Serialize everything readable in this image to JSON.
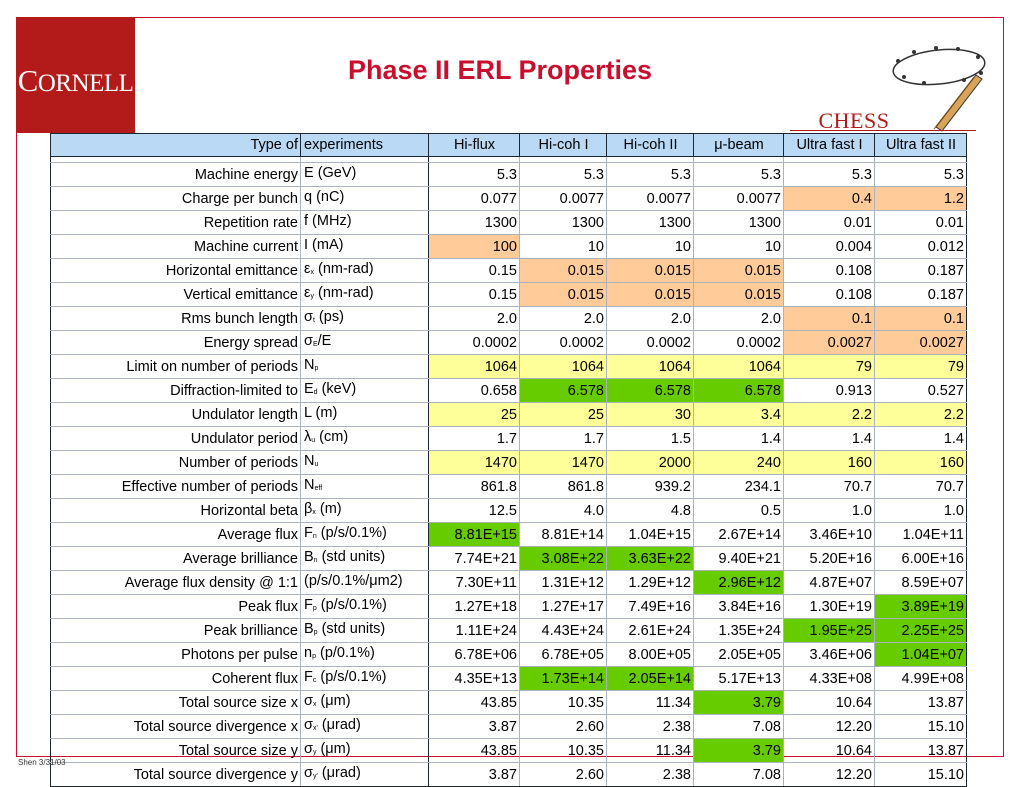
{
  "logo": {
    "text_first": "C",
    "text_rest": "ORNELL"
  },
  "title": "Phase II ERL Properties",
  "chess": {
    "text": "CHESS"
  },
  "footnote": "Shen 3/31/03",
  "colors": {
    "frame": "#c8102e",
    "logo_bg": "#b31b1b",
    "header_bg": "#b9d9f5",
    "orange": "#ffcc99",
    "yellow": "#ffff99",
    "green": "#66cc00"
  },
  "table": {
    "headers": [
      "Type of",
      "experiments",
      "Hi-flux",
      "Hi-coh I",
      "Hi-coh II",
      "μ-beam",
      "Ultra fast I",
      "Ultra fast II"
    ],
    "rows": [
      {
        "label": "Machine energy",
        "sym": "E",
        "sub": "",
        "unit": " (GeV)",
        "values": [
          "5.3",
          "5.3",
          "5.3",
          "5.3",
          "5.3",
          "5.3"
        ],
        "hl": [
          "",
          "",
          "",
          "",
          "",
          ""
        ]
      },
      {
        "label": "Charge per bunch",
        "sym": "q",
        "sub": "",
        "unit": " (nC)",
        "values": [
          "0.077",
          "0.0077",
          "0.0077",
          "0.0077",
          "0.4",
          "1.2"
        ],
        "hl": [
          "",
          "",
          "",
          "",
          "o",
          "o"
        ]
      },
      {
        "label": "Repetition rate",
        "sym": "f",
        "sub": "",
        "unit": " (MHz)",
        "values": [
          "1300",
          "1300",
          "1300",
          "1300",
          "0.01",
          "0.01"
        ],
        "hl": [
          "",
          "",
          "",
          "",
          "",
          ""
        ]
      },
      {
        "label": "Machine current",
        "sym": "I",
        "sub": "",
        "unit": " (mA)",
        "values": [
          "100",
          "10",
          "10",
          "10",
          "0.004",
          "0.012"
        ],
        "hl": [
          "o",
          "",
          "",
          "",
          "",
          ""
        ]
      },
      {
        "label": "Horizontal emittance",
        "sym": "ε",
        "sub": "x",
        "unit": " (nm-rad)",
        "values": [
          "0.15",
          "0.015",
          "0.015",
          "0.015",
          "0.108",
          "0.187"
        ],
        "hl": [
          "",
          "o",
          "o",
          "o",
          "",
          ""
        ]
      },
      {
        "label": "Vertical emittance",
        "sym": "ε",
        "sub": "y",
        "unit": " (nm-rad)",
        "values": [
          "0.15",
          "0.015",
          "0.015",
          "0.015",
          "0.108",
          "0.187"
        ],
        "hl": [
          "",
          "o",
          "o",
          "o",
          "",
          ""
        ]
      },
      {
        "label": "Rms bunch length",
        "sym": "σ",
        "sub": "t",
        "unit": " (ps)",
        "values": [
          "2.0",
          "2.0",
          "2.0",
          "2.0",
          "0.1",
          "0.1"
        ],
        "hl": [
          "",
          "",
          "",
          "",
          "o",
          "o"
        ]
      },
      {
        "label": "Energy spread",
        "sym": "σ",
        "sub": "E",
        "unit": "/E",
        "values": [
          "0.0002",
          "0.0002",
          "0.0002",
          "0.0002",
          "0.0027",
          "0.0027"
        ],
        "hl": [
          "",
          "",
          "",
          "",
          "o",
          "o"
        ]
      },
      {
        "label": "Limit on number of periods",
        "sym": "N",
        "sub": "p",
        "unit": "",
        "values": [
          "1064",
          "1064",
          "1064",
          "1064",
          "79",
          "79"
        ],
        "hl": [
          "y",
          "y",
          "y",
          "y",
          "y",
          "y"
        ]
      },
      {
        "label": "Diffraction-limited to",
        "sym": "E",
        "sub": "d",
        "unit": " (keV)",
        "values": [
          "0.658",
          "6.578",
          "6.578",
          "6.578",
          "0.913",
          "0.527"
        ],
        "hl": [
          "",
          "g",
          "g",
          "g",
          "",
          ""
        ]
      },
      {
        "label": "Undulator length",
        "sym": "L",
        "sub": "",
        "unit": " (m)",
        "values": [
          "25",
          "25",
          "30",
          "3.4",
          "2.2",
          "2.2"
        ],
        "hl": [
          "y",
          "y",
          "y",
          "y",
          "y",
          "y"
        ],
        "section": true
      },
      {
        "label": "Undulator period",
        "sym": "λ",
        "sub": "u",
        "unit": " (cm)",
        "values": [
          "1.7",
          "1.7",
          "1.5",
          "1.4",
          "1.4",
          "1.4"
        ],
        "hl": [
          "",
          "",
          "",
          "",
          "",
          ""
        ]
      },
      {
        "label": "Number of periods",
        "sym": "N",
        "sub": "u",
        "unit": "",
        "values": [
          "1470",
          "1470",
          "2000",
          "240",
          "160",
          "160"
        ],
        "hl": [
          "y",
          "y",
          "y",
          "y",
          "y",
          "y"
        ]
      },
      {
        "label": "Effective number of periods",
        "sym": "N",
        "sub": "eff",
        "unit": "",
        "values": [
          "861.8",
          "861.8",
          "939.2",
          "234.1",
          "70.7",
          "70.7"
        ],
        "hl": [
          "",
          "",
          "",
          "",
          "",
          ""
        ]
      },
      {
        "label": "Horizontal beta",
        "sym": "β",
        "sub": "x",
        "unit": " (m)",
        "values": [
          "12.5",
          "4.0",
          "4.8",
          "0.5",
          "1.0",
          "1.0"
        ],
        "hl": [
          "",
          "",
          "",
          "",
          "",
          ""
        ]
      },
      {
        "label": "Average flux",
        "sym": "F",
        "sub": "n",
        "unit": " (p/s/0.1%)",
        "values": [
          "8.81E+15",
          "8.81E+14",
          "1.04E+15",
          "2.67E+14",
          "3.46E+10",
          "1.04E+11"
        ],
        "hl": [
          "g",
          "",
          "",
          "",
          "",
          ""
        ]
      },
      {
        "label": "Average brilliance",
        "sym": "B",
        "sub": "n",
        "unit": " (std units)",
        "values": [
          "7.74E+21",
          "3.08E+22",
          "3.63E+22",
          "9.40E+21",
          "5.20E+16",
          "6.00E+16"
        ],
        "hl": [
          "",
          "g",
          "g",
          "",
          "",
          ""
        ]
      },
      {
        "label": "Average flux density @ 1:1",
        "sym": "",
        "sub": "",
        "unit": "(p/s/0.1%/μm2)",
        "values": [
          "7.30E+11",
          "1.31E+12",
          "1.29E+12",
          "2.96E+12",
          "4.87E+07",
          "8.59E+07"
        ],
        "hl": [
          "",
          "",
          "",
          "g",
          "",
          ""
        ]
      },
      {
        "label": "Peak flux",
        "sym": "F",
        "sub": "p",
        "unit": " (p/s/0.1%)",
        "values": [
          "1.27E+18",
          "1.27E+17",
          "7.49E+16",
          "3.84E+16",
          "1.30E+19",
          "3.89E+19"
        ],
        "hl": [
          "",
          "",
          "",
          "",
          "",
          "g"
        ]
      },
      {
        "label": "Peak brilliance",
        "sym": "B",
        "sub": "p",
        "unit": " (std units)",
        "values": [
          "1.11E+24",
          "4.43E+24",
          "2.61E+24",
          "1.35E+24",
          "1.95E+25",
          "2.25E+25"
        ],
        "hl": [
          "",
          "",
          "",
          "",
          "g",
          "g"
        ]
      },
      {
        "label": "Photons per pulse",
        "sym": "n",
        "sub": "p",
        "unit": " (p/0.1%)",
        "values": [
          "6.78E+06",
          "6.78E+05",
          "8.00E+05",
          "2.05E+05",
          "3.46E+06",
          "1.04E+07"
        ],
        "hl": [
          "",
          "",
          "",
          "",
          "",
          "g"
        ]
      },
      {
        "label": "Coherent flux",
        "sym": "F",
        "sub": "c",
        "unit": " (p/s/0.1%)",
        "values": [
          "4.35E+13",
          "1.73E+14",
          "2.05E+14",
          "5.17E+13",
          "4.33E+08",
          "4.99E+08"
        ],
        "hl": [
          "",
          "g",
          "g",
          "",
          "",
          ""
        ]
      },
      {
        "label": "Total source size x",
        "sym": "σ",
        "sub": "x",
        "unit": " (μm)",
        "values": [
          "43.85",
          "10.35",
          "11.34",
          "3.79",
          "10.64",
          "13.87"
        ],
        "hl": [
          "",
          "",
          "",
          "g",
          "",
          ""
        ],
        "section": true
      },
      {
        "label": "Total source divergence x",
        "sym": "σ",
        "sub": "x'",
        "unit": " (μrad)",
        "values": [
          "3.87",
          "2.60",
          "2.38",
          "7.08",
          "12.20",
          "15.10"
        ],
        "hl": [
          "",
          "",
          "",
          "",
          "",
          ""
        ]
      },
      {
        "label": "Total source size y",
        "sym": "σ",
        "sub": "y",
        "unit": " (μm)",
        "values": [
          "43.85",
          "10.35",
          "11.34",
          "3.79",
          "10.64",
          "13.87"
        ],
        "hl": [
          "",
          "",
          "",
          "g",
          "",
          ""
        ]
      },
      {
        "label": "Total source divergence y",
        "sym": "σ",
        "sub": "y'",
        "unit": " (μrad)",
        "values": [
          "3.87",
          "2.60",
          "2.38",
          "7.08",
          "12.20",
          "15.10"
        ],
        "hl": [
          "",
          "",
          "",
          "",
          "",
          ""
        ]
      }
    ]
  }
}
